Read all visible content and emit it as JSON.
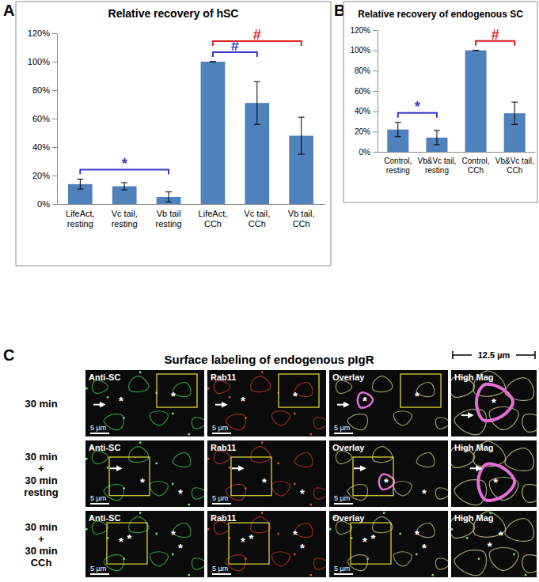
{
  "figure": {
    "panel_labels": [
      "A",
      "B",
      "C"
    ]
  },
  "chart_data": [
    {
      "type": "bar",
      "title": "Relative recovery of hSC",
      "categories": [
        "LifeAct, resting",
        "Vc tail, resting",
        "Vb tail resting",
        "LifeAct, CCh",
        "Vc tail, CCh",
        "Vb tail, CCh"
      ],
      "values": [
        14,
        12.5,
        5,
        100,
        71,
        48
      ],
      "errors": [
        3.5,
        2.5,
        3.5,
        0,
        15,
        13
      ],
      "color": "#4f81bd",
      "ylim": [
        0,
        120
      ],
      "yticks": [
        {
          "value": 0,
          "label": "0%"
        },
        {
          "value": 20,
          "label": "20%"
        },
        {
          "value": 40,
          "label": "40%"
        },
        {
          "value": 60,
          "label": "60%"
        },
        {
          "value": 80,
          "label": "80%"
        },
        {
          "value": 100,
          "label": "100%"
        },
        {
          "value": 120,
          "label": "120%"
        }
      ],
      "grid": false,
      "annotations": [
        {
          "text": "*",
          "from": "LifeAct, resting",
          "to": "Vb tail resting",
          "color": "#3a3ac8"
        },
        {
          "text": "#",
          "from": "LifeAct, CCh",
          "to": "Vc tail, CCh",
          "color": "#3a3ac8"
        },
        {
          "text": "#",
          "from": "LifeAct, CCh",
          "to": "Vb tail, CCh",
          "color": "#e02222"
        }
      ]
    },
    {
      "type": "bar",
      "title": "Relative recovery of endogenous SC",
      "categories": [
        "Control, resting",
        "Vb&Vc tail, resting",
        "Control, CCh",
        "Vb&Vc tail, CCh"
      ],
      "values": [
        22,
        14,
        100,
        38
      ],
      "errors": [
        7,
        7,
        0,
        11
      ],
      "color": "#4f81bd",
      "ylim": [
        0,
        120
      ],
      "yticks": [
        {
          "value": 0,
          "label": "0%"
        },
        {
          "value": 20,
          "label": "20%"
        },
        {
          "value": 40,
          "label": "40%"
        },
        {
          "value": 60,
          "label": "60%"
        },
        {
          "value": 80,
          "label": "80%"
        },
        {
          "value": 100,
          "label": "100%"
        },
        {
          "value": 120,
          "label": "120%"
        }
      ],
      "grid": false,
      "annotations": [
        {
          "text": "*",
          "from": "Control, resting",
          "to": "Vb&Vc tail, resting",
          "color": "#3a3ac8"
        },
        {
          "text": "#",
          "from": "Control, CCh",
          "to": "Vb&Vc tail, CCh",
          "color": "#e02222"
        }
      ]
    }
  ],
  "panel_c": {
    "title": "Surface labeling of endogenous pIgR",
    "columns": [
      "Anti-SC",
      "Rab11",
      "Overlay",
      "High Mag"
    ],
    "rows": [
      {
        "label": [
          "30 min"
        ]
      },
      {
        "label": [
          "30 min",
          "+",
          "30 min",
          "resting"
        ]
      },
      {
        "label": [
          "30 min",
          "+",
          "30 min",
          "CCh"
        ]
      }
    ],
    "scale_bar": "5 µm",
    "high_mag_width": "12.5 µm",
    "marker": "*"
  }
}
